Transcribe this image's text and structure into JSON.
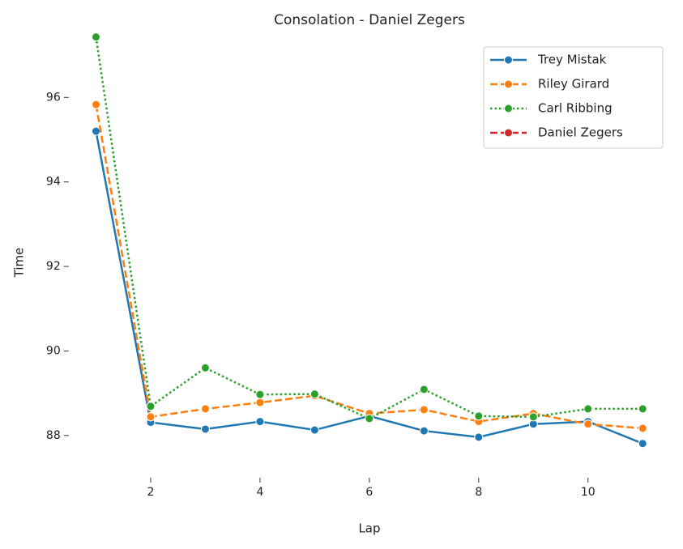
{
  "chart_data": {
    "type": "line",
    "title": "Consolation - Daniel Zegers",
    "x_label": "Lap",
    "y_label": "Time",
    "x": [
      1,
      2,
      3,
      4,
      5,
      6,
      7,
      8,
      9,
      10,
      11
    ],
    "series": [
      {
        "name": "Trey Mistak",
        "color": "#1f77b4",
        "dash": "solid",
        "values": [
          95.2,
          88.31,
          88.15,
          88.33,
          88.13,
          88.46,
          88.11,
          87.96,
          88.27,
          88.33,
          87.81
        ]
      },
      {
        "name": "Riley Girard",
        "color": "#ff7f0e",
        "dash": "dashed",
        "values": [
          95.83,
          88.44,
          88.63,
          88.78,
          88.94,
          88.52,
          88.61,
          88.33,
          88.52,
          88.27,
          88.17
        ]
      },
      {
        "name": "Carl Ribbing",
        "color": "#2ca02c",
        "dash": "dotted",
        "values": [
          97.43,
          88.69,
          89.6,
          88.97,
          88.98,
          88.4,
          89.09,
          88.46,
          88.44,
          88.63,
          88.63
        ]
      },
      {
        "name": "Daniel Zegers",
        "color": "#d62728",
        "dash": "dashed",
        "values": [
          null,
          null,
          null,
          null,
          null,
          null,
          null,
          null,
          null,
          null,
          null
        ]
      }
    ],
    "xlim": [
      0.5,
      11.5
    ],
    "xticks": [
      2,
      4,
      6,
      8,
      10
    ],
    "ylim": [
      87.0,
      97.5
    ],
    "yticks": [
      88,
      90,
      92,
      94,
      96
    ],
    "grid": false,
    "legend": "upper right",
    "markers": true
  }
}
